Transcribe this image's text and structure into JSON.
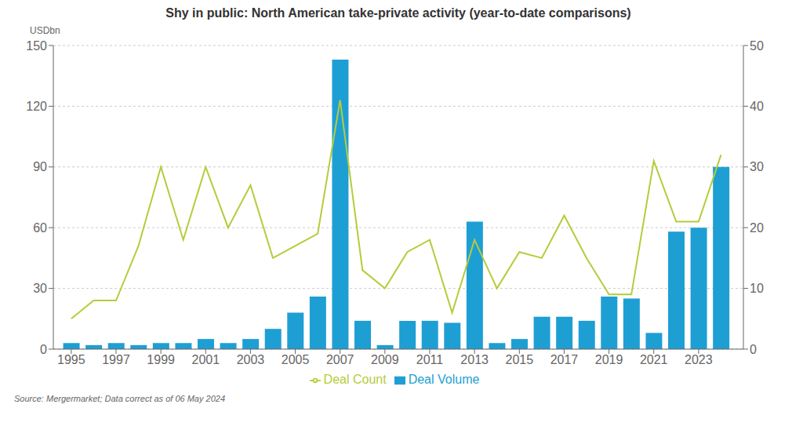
{
  "chart_data": {
    "type": "bar",
    "title": "Shy in public: North American take-private activity (year-to-date comparisons)",
    "y_label": "USDbn",
    "annotations": [
      "Source: Mergermarket; Data correct as of 06 May 2024"
    ],
    "x": [
      1995,
      1996,
      1997,
      1998,
      1999,
      2000,
      2001,
      2002,
      2003,
      2004,
      2005,
      2006,
      2007,
      2008,
      2009,
      2010,
      2011,
      2012,
      2013,
      2014,
      2015,
      2016,
      2017,
      2018,
      2019,
      2020,
      2021,
      2022,
      2023,
      2024
    ],
    "series": [
      {
        "name": "Deal Volume",
        "type": "bar",
        "color": "#1e9fd4",
        "values": [
          3,
          2,
          3,
          2,
          3,
          3,
          5,
          3,
          5,
          10,
          18,
          26,
          143,
          14,
          2,
          14,
          14,
          13,
          63,
          3,
          5,
          16,
          16,
          14,
          26,
          25,
          8,
          58,
          60,
          90
        ]
      },
      {
        "name": "Deal Count",
        "type": "line",
        "color": "#b5cc3a",
        "axis": "y2",
        "values": [
          5,
          8,
          8,
          17,
          30,
          18,
          30,
          20,
          27,
          15,
          17,
          19,
          41,
          13,
          10,
          16,
          18,
          6,
          18,
          10,
          16,
          15,
          22,
          15,
          9,
          9,
          31,
          21,
          21,
          32
        ]
      }
    ],
    "xlim": [
      1994.2,
      2025.0
    ],
    "xticks": [
      1995,
      1997,
      1999,
      2001,
      2003,
      2005,
      2007,
      2009,
      2011,
      2013,
      2015,
      2017,
      2019,
      2021,
      2023
    ],
    "ylim": [
      0,
      150
    ],
    "yticks": [
      0,
      30,
      60,
      90,
      120,
      150
    ],
    "y2lim": [
      0,
      50
    ],
    "y2ticks": [
      0,
      10,
      20,
      30,
      40,
      50
    ],
    "grid": true,
    "legend": "bottom"
  }
}
